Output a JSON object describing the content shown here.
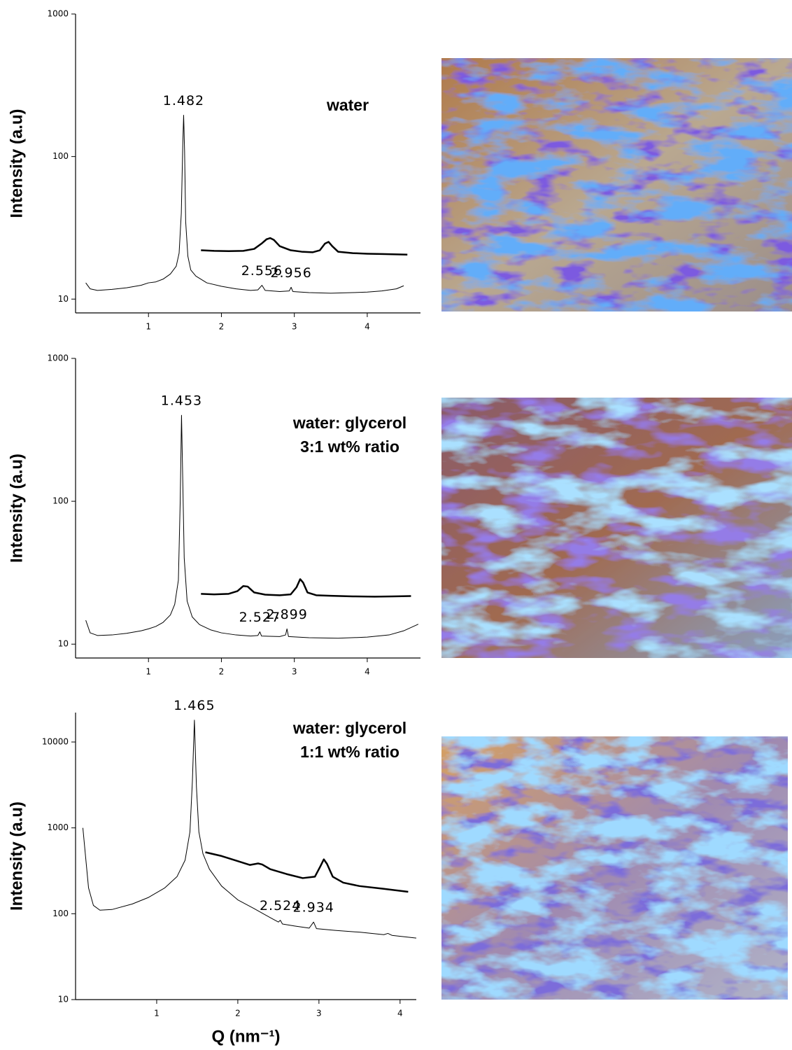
{
  "chart_data": [
    {
      "type": "line",
      "log": true,
      "label": [
        "water"
      ],
      "ylabel": "Intensity (a.u)",
      "xlim": [
        0,
        4.73
      ],
      "xticks": [
        1,
        2,
        3,
        4
      ],
      "ylim": [
        8,
        1000
      ],
      "yticks": [
        10,
        100,
        1000
      ],
      "peaks": [
        1.482,
        2.556,
        2.956
      ],
      "series": [
        {
          "color": "#000000",
          "x": [
            0.14,
            0.2,
            0.3,
            0.5,
            0.7,
            0.9,
            1.0,
            1.1,
            1.2,
            1.3,
            1.38,
            1.42,
            1.45,
            1.47,
            1.482,
            1.495,
            1.51,
            1.54,
            1.58,
            1.65,
            1.8,
            2.0,
            2.2,
            2.4,
            2.5,
            2.556,
            2.6,
            2.8,
            2.93,
            2.956,
            2.98,
            3.2,
            3.5,
            3.8,
            4.0,
            4.2,
            4.4,
            4.5
          ],
          "values": [
            13,
            11.8,
            11.5,
            11.7,
            12,
            12.5,
            13,
            13.2,
            13.8,
            15,
            17,
            21,
            40,
            120,
            195,
            110,
            35,
            20,
            16,
            14.5,
            13,
            12.3,
            11.8,
            11.5,
            11.6,
            12.5,
            11.5,
            11.3,
            11.4,
            12.1,
            11.3,
            11.1,
            11.0,
            11.1,
            11.2,
            11.4,
            11.8,
            12.4
          ]
        },
        {
          "color": "#000000",
          "x": [
            1.72,
            1.9,
            2.1,
            2.3,
            2.45,
            2.55,
            2.62,
            2.67,
            2.72,
            2.8,
            2.95,
            3.1,
            3.25,
            3.35,
            3.42,
            3.47,
            3.52,
            3.6,
            3.8,
            4.0,
            4.2,
            4.4,
            4.55
          ],
          "values": [
            22,
            21.8,
            21.7,
            21.8,
            22.5,
            24.5,
            26.3,
            26.8,
            26,
            23.5,
            22,
            21.5,
            21.3,
            22,
            24.5,
            25.2,
            23.5,
            21.5,
            21,
            20.8,
            20.7,
            20.6,
            20.5
          ]
        }
      ]
    },
    {
      "type": "line",
      "log": true,
      "label": [
        "water: glycerol",
        "3:1 wt% ratio"
      ],
      "ylabel": "Intensity (a.u)",
      "xlim": [
        0,
        4.73
      ],
      "xticks": [
        1,
        2,
        3,
        4
      ],
      "ylim": [
        8,
        1000
      ],
      "yticks": [
        10,
        100,
        1000
      ],
      "peaks": [
        1.453,
        2.527,
        2.899
      ],
      "series": [
        {
          "color": "#000000",
          "x": [
            0.14,
            0.2,
            0.3,
            0.5,
            0.7,
            0.9,
            1.0,
            1.1,
            1.2,
            1.3,
            1.36,
            1.41,
            1.435,
            1.453,
            1.47,
            1.49,
            1.53,
            1.6,
            1.7,
            1.85,
            2.0,
            2.2,
            2.4,
            2.5,
            2.527,
            2.55,
            2.8,
            2.88,
            2.899,
            2.92,
            3.2,
            3.6,
            4.0,
            4.3,
            4.5,
            4.7
          ],
          "values": [
            14.7,
            12,
            11.5,
            11.6,
            11.9,
            12.4,
            12.8,
            13.3,
            14.2,
            16,
            19,
            28,
            100,
            400,
            140,
            40,
            20,
            15.5,
            13.7,
            12.6,
            12,
            11.6,
            11.4,
            11.5,
            12.2,
            11.4,
            11.3,
            11.6,
            12.8,
            11.3,
            11.1,
            11.0,
            11.2,
            11.6,
            12.4,
            13.8
          ]
        },
        {
          "color": "#000000",
          "x": [
            1.72,
            1.9,
            2.1,
            2.22,
            2.3,
            2.36,
            2.45,
            2.6,
            2.8,
            2.95,
            3.03,
            3.08,
            3.12,
            3.18,
            3.3,
            3.5,
            3.8,
            4.1,
            4.35,
            4.6
          ],
          "values": [
            22.5,
            22.3,
            22.5,
            23.5,
            25.5,
            25.3,
            23,
            22.2,
            22,
            22.3,
            25,
            28.5,
            27,
            23,
            22,
            21.8,
            21.6,
            21.5,
            21.6,
            21.7
          ]
        }
      ]
    },
    {
      "type": "line",
      "log": true,
      "label": [
        "water: glycerol",
        "1:1 wt% ratio"
      ],
      "ylabel": "Intensity (a.u)",
      "xlabel": "Q (nm⁻¹)",
      "xlim": [
        0,
        4.2
      ],
      "xticks": [
        1,
        2,
        3,
        4
      ],
      "ylim": [
        10,
        22000
      ],
      "yticks": [
        10,
        100,
        1000,
        10000
      ],
      "peaks": [
        1.465,
        2.524,
        2.934
      ],
      "series": [
        {
          "color": "#000000",
          "x": [
            0.09,
            0.12,
            0.16,
            0.22,
            0.3,
            0.45,
            0.7,
            0.9,
            1.1,
            1.25,
            1.35,
            1.41,
            1.44,
            1.465,
            1.49,
            1.52,
            1.57,
            1.65,
            1.8,
            2.0,
            2.2,
            2.4,
            2.5,
            2.524,
            2.55,
            2.7,
            2.88,
            2.934,
            2.97,
            3.2,
            3.5,
            3.8,
            3.85,
            3.9,
            4.2
          ],
          "values": [
            1000,
            500,
            200,
            125,
            110,
            112,
            130,
            155,
            200,
            270,
            420,
            900,
            3500,
            18000,
            3000,
            900,
            500,
            330,
            210,
            145,
            115,
            90,
            80,
            84,
            76,
            72,
            68,
            80,
            67,
            64,
            61,
            57,
            59,
            56,
            52
          ]
        },
        {
          "color": "#000000",
          "x": [
            1.6,
            1.8,
            2.0,
            2.15,
            2.25,
            2.3,
            2.4,
            2.6,
            2.8,
            2.95,
            3.02,
            3.06,
            3.1,
            3.17,
            3.3,
            3.5,
            3.8,
            4.1
          ],
          "values": [
            520,
            470,
            410,
            370,
            385,
            375,
            330,
            290,
            260,
            270,
            360,
            430,
            380,
            270,
            230,
            210,
            195,
            180
          ]
        }
      ]
    }
  ]
}
